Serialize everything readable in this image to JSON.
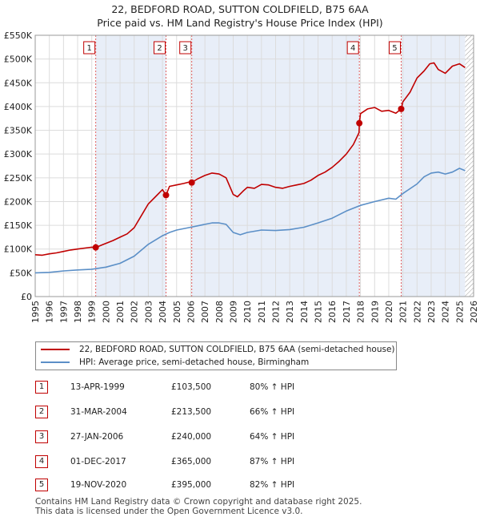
{
  "title_line1": "22, BEDFORD ROAD, SUTTON COLDFIELD, B75 6AA",
  "title_line2": "Price paid vs. HM Land Registry's House Price Index (HPI)",
  "colors": {
    "property_line": "#c00000",
    "hpi_line": "#5b8fc7",
    "shade": "#e8eef8",
    "marker_border": "#c00000"
  },
  "chart_data": {
    "type": "line",
    "xlim": [
      1995,
      2026
    ],
    "ylim": [
      0,
      550000
    ],
    "x_ticks": [
      1995,
      1996,
      1997,
      1998,
      1999,
      2000,
      2001,
      2002,
      2003,
      2004,
      2005,
      2006,
      2007,
      2008,
      2009,
      2010,
      2011,
      2012,
      2013,
      2014,
      2015,
      2016,
      2017,
      2018,
      2019,
      2020,
      2021,
      2022,
      2023,
      2024,
      2025,
      2026
    ],
    "y_ticks": [
      0,
      50000,
      100000,
      150000,
      200000,
      250000,
      300000,
      350000,
      400000,
      450000,
      500000,
      550000
    ],
    "y_tick_labels": [
      "£0",
      "£50K",
      "£100K",
      "£150K",
      "£200K",
      "£250K",
      "£300K",
      "£350K",
      "£400K",
      "£450K",
      "£500K",
      "£550K"
    ],
    "shaded_ranges": [
      [
        1999.28,
        2004.25
      ],
      [
        2006.07,
        2017.92
      ],
      [
        2020.88,
        2025.4
      ]
    ],
    "hatch_after": 2025.4,
    "series": [
      {
        "name": "22, BEDFORD ROAD, SUTTON COLDFIELD, B75 6AA (semi-detached house)",
        "color": "#c00000",
        "x": [
          1995,
          1995.5,
          1996,
          1996.5,
          1997,
          1997.5,
          1998,
          1998.5,
          1999,
          1999.28,
          2000,
          2000.5,
          2001,
          2001.5,
          2002,
          2002.5,
          2003,
          2003.5,
          2004,
          2004.25,
          2004.5,
          2005,
          2005.5,
          2006,
          2006.07,
          2006.5,
          2007,
          2007.5,
          2008,
          2008.5,
          2009,
          2009.3,
          2009.7,
          2010,
          2010.5,
          2011,
          2011.5,
          2012,
          2012.5,
          2013,
          2013.5,
          2014,
          2014.5,
          2015,
          2015.5,
          2016,
          2016.5,
          2017,
          2017.5,
          2017.9,
          2017.92,
          2018,
          2018.5,
          2019,
          2019.5,
          2020,
          2020.5,
          2020.88,
          2021,
          2021.5,
          2022,
          2022.5,
          2022.9,
          2023.2,
          2023.5,
          2024,
          2024.5,
          2025,
          2025.4
        ],
        "values": [
          88000,
          87000,
          90000,
          92000,
          95000,
          98000,
          100000,
          102000,
          104000,
          103500,
          112000,
          118000,
          125000,
          132000,
          145000,
          170000,
          195000,
          210000,
          225000,
          213500,
          232000,
          235000,
          238000,
          242000,
          240000,
          248000,
          255000,
          260000,
          258000,
          250000,
          215000,
          210000,
          222000,
          230000,
          228000,
          236000,
          235000,
          230000,
          228000,
          232000,
          235000,
          238000,
          245000,
          255000,
          262000,
          272000,
          285000,
          300000,
          320000,
          345000,
          365000,
          385000,
          395000,
          398000,
          390000,
          392000,
          386000,
          395000,
          410000,
          430000,
          460000,
          475000,
          490000,
          492000,
          478000,
          470000,
          485000,
          490000,
          482000
        ]
      },
      {
        "name": "HPI: Average price, semi-detached house, Birmingham",
        "color": "#5b8fc7",
        "x": [
          1995,
          1996,
          1997,
          1998,
          1999,
          2000,
          2001,
          2002,
          2003,
          2004,
          2004.5,
          2005,
          2006,
          2007,
          2007.5,
          2008,
          2008.5,
          2009,
          2009.5,
          2010,
          2011,
          2012,
          2013,
          2014,
          2015,
          2016,
          2017,
          2018,
          2019,
          2020,
          2020.5,
          2021,
          2022,
          2022.5,
          2023,
          2023.5,
          2024,
          2024.5,
          2025,
          2025.4
        ],
        "values": [
          50000,
          51000,
          54000,
          56000,
          57500,
          62000,
          70000,
          85000,
          110000,
          128000,
          135000,
          140000,
          146000,
          152000,
          155000,
          155000,
          152000,
          135000,
          130000,
          135000,
          140000,
          139000,
          141000,
          146000,
          155000,
          165000,
          180000,
          192000,
          200000,
          207000,
          205000,
          217000,
          237000,
          252000,
          260000,
          262000,
          258000,
          262000,
          270000,
          265000
        ]
      }
    ],
    "sale_markers": [
      {
        "label": "1",
        "x": 1999.28,
        "y": 103500
      },
      {
        "label": "2",
        "x": 2004.25,
        "y": 213500
      },
      {
        "label": "3",
        "x": 2006.07,
        "y": 240000
      },
      {
        "label": "4",
        "x": 2017.92,
        "y": 365000
      },
      {
        "label": "5",
        "x": 2020.88,
        "y": 395000
      }
    ]
  },
  "legend": {
    "property_label": "22, BEDFORD ROAD, SUTTON COLDFIELD, B75 6AA (semi-detached house)",
    "hpi_label": "HPI: Average price, semi-detached house, Birmingham"
  },
  "sales": [
    {
      "num": "1",
      "date": "13-APR-1999",
      "price": "£103,500",
      "hpi": "80% ↑ HPI"
    },
    {
      "num": "2",
      "date": "31-MAR-2004",
      "price": "£213,500",
      "hpi": "66% ↑ HPI"
    },
    {
      "num": "3",
      "date": "27-JAN-2006",
      "price": "£240,000",
      "hpi": "64% ↑ HPI"
    },
    {
      "num": "4",
      "date": "01-DEC-2017",
      "price": "£365,000",
      "hpi": "87% ↑ HPI"
    },
    {
      "num": "5",
      "date": "19-NOV-2020",
      "price": "£395,000",
      "hpi": "82% ↑ HPI"
    }
  ],
  "footer_line1": "Contains HM Land Registry data © Crown copyright and database right 2025.",
  "footer_line2": "This data is licensed under the Open Government Licence v3.0."
}
